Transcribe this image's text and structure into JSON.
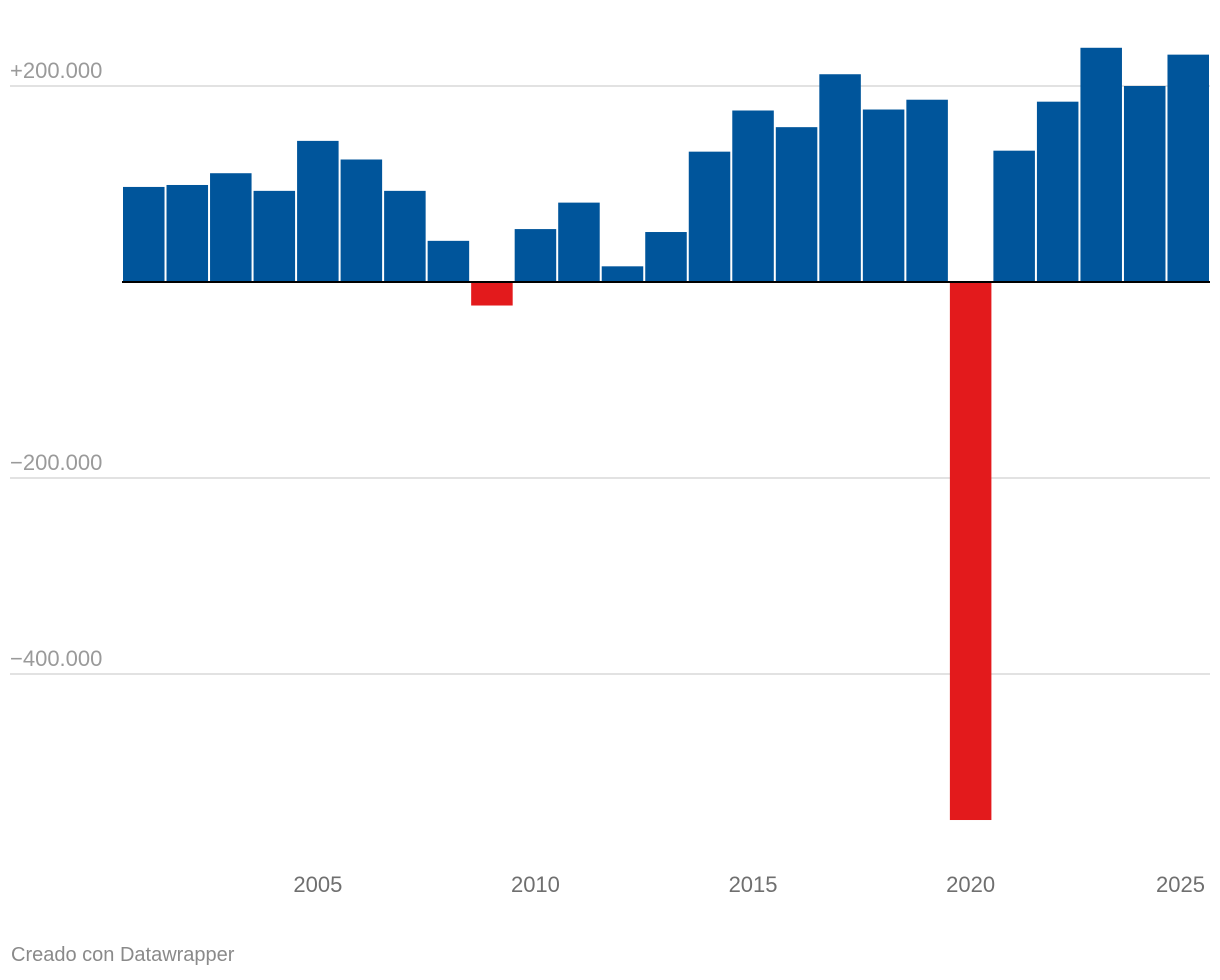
{
  "chart_data": {
    "type": "bar",
    "x": [
      2001,
      2002,
      2003,
      2004,
      2005,
      2006,
      2007,
      2008,
      2009,
      2010,
      2011,
      2012,
      2013,
      2014,
      2015,
      2016,
      2017,
      2018,
      2019,
      2020,
      2021,
      2022,
      2023,
      2024,
      2025
    ],
    "values": [
      97000,
      99000,
      111000,
      93000,
      144000,
      125000,
      93000,
      42000,
      -24000,
      54000,
      81000,
      16000,
      51000,
      133000,
      175000,
      158000,
      212000,
      176000,
      186000,
      -549000,
      134000,
      184000,
      239000,
      200000,
      232000
    ],
    "y_ticks": [
      200000,
      -200000,
      -400000
    ],
    "y_tick_labels": [
      "+200.000",
      "−200.000",
      "−400.000"
    ],
    "x_ticks": [
      2005,
      2010,
      2015,
      2020,
      2025
    ],
    "x_tick_labels": [
      "2005",
      "2010",
      "2015",
      "2020",
      "2025"
    ],
    "ylim": [
      -600000,
      250000
    ],
    "grid": true,
    "colors": {
      "positive": "#00559b",
      "negative": "#e31a1c",
      "grid": "#e2e2e2",
      "zero_line": "#000000"
    }
  },
  "footer": {
    "credit": "Creado con Datawrapper"
  }
}
